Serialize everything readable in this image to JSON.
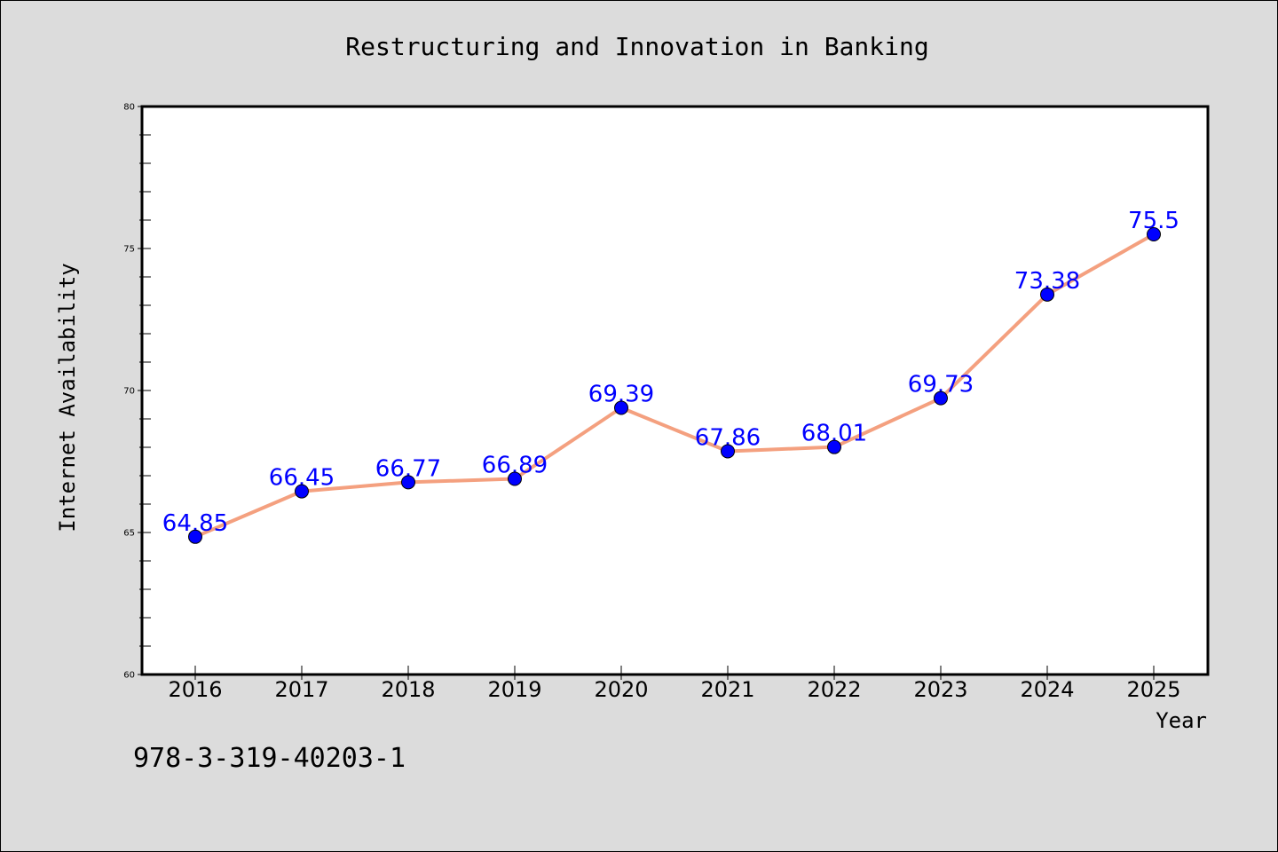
{
  "chart_data": {
    "type": "line",
    "title": "Restructuring and Innovation in Banking",
    "xlabel": "Year",
    "ylabel": "Internet Availability",
    "categories": [
      "2016",
      "2017",
      "2018",
      "2019",
      "2020",
      "2021",
      "2022",
      "2023",
      "2024",
      "2025"
    ],
    "values": [
      64.85,
      66.45,
      66.77,
      66.89,
      69.39,
      67.86,
      68.01,
      69.73,
      73.38,
      75.5
    ],
    "data_labels": [
      "64.85",
      "66.45",
      "66.77",
      "66.89",
      "69.39",
      "67.86",
      "68.01",
      "69.73",
      "73.38",
      "75.5"
    ],
    "ylim": [
      60,
      80
    ],
    "yticks": [
      60,
      65,
      70,
      75,
      80
    ],
    "ytick_labels": [
      "60",
      "65",
      "70",
      "75",
      "80"
    ],
    "grid": false,
    "legend": null,
    "colors": {
      "line": "#f4a07f",
      "marker": "#0000ff",
      "data_label": "#0000ff",
      "background": "#dcdcdc",
      "plot_background": "#ffffff"
    }
  },
  "footer": {
    "code": "978-3-319-40203-1"
  }
}
